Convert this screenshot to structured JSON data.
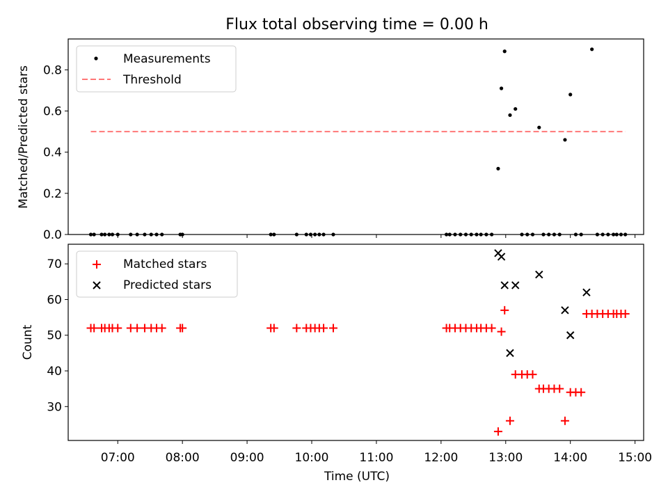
{
  "title": "Flux total observing time = 0.00 h",
  "chart_data": [
    {
      "type": "scatter",
      "ylabel": "Matched/Predicted stars",
      "xlim": [
        "06:14",
        "15:08"
      ],
      "ylim": [
        0,
        0.95
      ],
      "yticks": [
        "0.0",
        "0.2",
        "0.4",
        "0.6",
        "0.8"
      ],
      "legend_position": "top-left",
      "series": [
        {
          "name": "Measurements",
          "color": "#000000",
          "marker": "dot",
          "points": [
            [
              "06:35",
              0
            ],
            [
              "06:38",
              0
            ],
            [
              "06:45",
              0
            ],
            [
              "06:48",
              0
            ],
            [
              "06:52",
              0
            ],
            [
              "06:55",
              0
            ],
            [
              "07:00",
              0
            ],
            [
              "07:12",
              0
            ],
            [
              "07:18",
              0
            ],
            [
              "07:25",
              0
            ],
            [
              "07:31",
              0
            ],
            [
              "07:36",
              0
            ],
            [
              "07:41",
              0
            ],
            [
              "07:58",
              0
            ],
            [
              "08:00",
              0
            ],
            [
              "09:22",
              0
            ],
            [
              "09:25",
              0
            ],
            [
              "09:46",
              0
            ],
            [
              "09:55",
              0
            ],
            [
              "09:59",
              0
            ],
            [
              "10:03",
              0
            ],
            [
              "10:07",
              0
            ],
            [
              "10:11",
              0
            ],
            [
              "10:20",
              0
            ],
            [
              "12:05",
              0
            ],
            [
              "12:08",
              0
            ],
            [
              "12:13",
              0
            ],
            [
              "12:18",
              0
            ],
            [
              "12:23",
              0
            ],
            [
              "12:28",
              0
            ],
            [
              "12:33",
              0
            ],
            [
              "12:37",
              0
            ],
            [
              "12:42",
              0
            ],
            [
              "12:47",
              0
            ],
            [
              "12:53",
              0.32
            ],
            [
              "12:56",
              0.71
            ],
            [
              "12:59",
              0.89
            ],
            [
              "13:04",
              0.58
            ],
            [
              "13:09",
              0.61
            ],
            [
              "13:15",
              0
            ],
            [
              "13:20",
              0
            ],
            [
              "13:25",
              0
            ],
            [
              "13:31",
              0.52
            ],
            [
              "13:35",
              0
            ],
            [
              "13:40",
              0
            ],
            [
              "13:45",
              0
            ],
            [
              "13:50",
              0
            ],
            [
              "13:55",
              0.46
            ],
            [
              "14:00",
              0.68
            ],
            [
              "14:05",
              0
            ],
            [
              "14:10",
              0
            ],
            [
              "14:20",
              0.9
            ],
            [
              "14:25",
              0
            ],
            [
              "14:30",
              0
            ],
            [
              "14:35",
              0
            ],
            [
              "14:40",
              0
            ],
            [
              "14:43",
              0
            ],
            [
              "14:47",
              0
            ],
            [
              "14:51",
              0
            ]
          ]
        },
        {
          "name": "Threshold",
          "color": "#ff7777",
          "style": "dashed",
          "points": [
            [
              "06:35",
              0.5
            ],
            [
              "14:51",
              0.5
            ]
          ]
        }
      ]
    },
    {
      "type": "scatter",
      "xlabel": "Time (UTC)",
      "ylabel": "Count",
      "xlim": [
        "06:14",
        "15:08"
      ],
      "ylim": [
        20.5,
        75.5
      ],
      "yticks": [
        "30",
        "40",
        "50",
        "60",
        "70"
      ],
      "xticks": [
        "07:00",
        "08:00",
        "09:00",
        "10:00",
        "11:00",
        "12:00",
        "13:00",
        "14:00",
        "15:00"
      ],
      "legend_position": "top-left",
      "series": [
        {
          "name": "Matched stars",
          "color": "#ff0000",
          "marker": "plus",
          "points": [
            [
              "06:35",
              52
            ],
            [
              "06:38",
              52
            ],
            [
              "06:45",
              52
            ],
            [
              "06:48",
              52
            ],
            [
              "06:52",
              52
            ],
            [
              "06:55",
              52
            ],
            [
              "07:00",
              52
            ],
            [
              "07:12",
              52
            ],
            [
              "07:18",
              52
            ],
            [
              "07:25",
              52
            ],
            [
              "07:31",
              52
            ],
            [
              "07:36",
              52
            ],
            [
              "07:41",
              52
            ],
            [
              "07:58",
              52
            ],
            [
              "08:00",
              52
            ],
            [
              "09:22",
              52
            ],
            [
              "09:25",
              52
            ],
            [
              "09:46",
              52
            ],
            [
              "09:55",
              52
            ],
            [
              "09:59",
              52
            ],
            [
              "10:03",
              52
            ],
            [
              "10:07",
              52
            ],
            [
              "10:11",
              52
            ],
            [
              "10:20",
              52
            ],
            [
              "12:05",
              52
            ],
            [
              "12:08",
              52
            ],
            [
              "12:13",
              52
            ],
            [
              "12:18",
              52
            ],
            [
              "12:23",
              52
            ],
            [
              "12:28",
              52
            ],
            [
              "12:33",
              52
            ],
            [
              "12:37",
              52
            ],
            [
              "12:42",
              52
            ],
            [
              "12:47",
              52
            ],
            [
              "12:53",
              23
            ],
            [
              "12:56",
              51
            ],
            [
              "12:59",
              57
            ],
            [
              "13:04",
              26
            ],
            [
              "13:09",
              39
            ],
            [
              "13:15",
              39
            ],
            [
              "13:20",
              39
            ],
            [
              "13:25",
              39
            ],
            [
              "13:31",
              35
            ],
            [
              "13:35",
              35
            ],
            [
              "13:40",
              35
            ],
            [
              "13:45",
              35
            ],
            [
              "13:50",
              35
            ],
            [
              "13:55",
              26
            ],
            [
              "14:00",
              34
            ],
            [
              "14:05",
              34
            ],
            [
              "14:10",
              34
            ],
            [
              "14:15",
              56
            ],
            [
              "14:20",
              56
            ],
            [
              "14:25",
              56
            ],
            [
              "14:30",
              56
            ],
            [
              "14:35",
              56
            ],
            [
              "14:40",
              56
            ],
            [
              "14:43",
              56
            ],
            [
              "14:47",
              56
            ],
            [
              "14:51",
              56
            ]
          ]
        },
        {
          "name": "Predicted stars",
          "color": "#000000",
          "marker": "x",
          "points": [
            [
              "12:53",
              73
            ],
            [
              "12:56",
              72
            ],
            [
              "12:59",
              64
            ],
            [
              "13:04",
              45
            ],
            [
              "13:09",
              64
            ],
            [
              "13:31",
              67
            ],
            [
              "13:55",
              57
            ],
            [
              "14:00",
              50
            ],
            [
              "14:15",
              62
            ]
          ]
        }
      ]
    }
  ]
}
